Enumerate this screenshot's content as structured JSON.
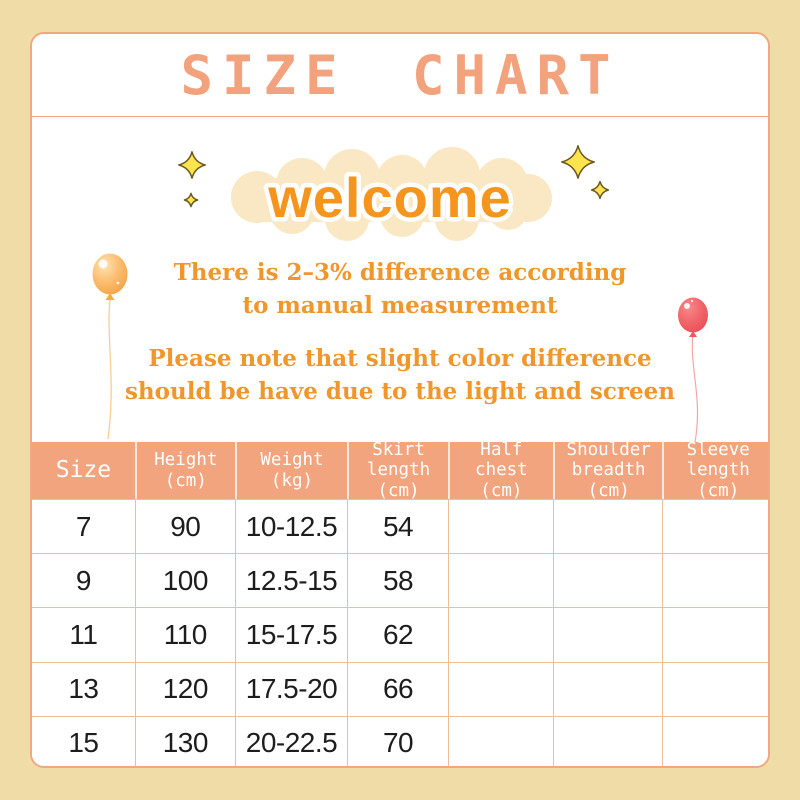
{
  "title": "SIZE CHART",
  "welcome": {
    "label": "welcome"
  },
  "notes": {
    "note1_line1": "There is 2–3% difference according",
    "note1_line2": "to manual measurement",
    "note2_line1": "Please note that slight color difference",
    "note2_line2": "should be have due to the light and screen"
  },
  "decorations": {
    "balloon_left": "orange-balloon-with-string",
    "balloon_right": "red-balloon-with-string",
    "sparkles": "yellow-four-point-stars"
  },
  "colors": {
    "background": "#F0DCA6",
    "card_border": "#EFA87F",
    "title_text": "#F2A37E",
    "header_bg": "#F1A47D",
    "header_text": "#FFFFFF",
    "note_text": "#F0962B",
    "welcome_text": "#F6951D",
    "welcome_cloud": "#FAE7C4",
    "table_border": "#EFBE96",
    "cell_text": "#1D1D1D",
    "balloon_left_color": "#FBBC6E",
    "balloon_right_color": "#F15F62",
    "sparkle_fill": "#FFE44D"
  },
  "table": {
    "columns": [
      {
        "lines": [
          "Size"
        ]
      },
      {
        "lines": [
          "Height",
          "(cm)"
        ]
      },
      {
        "lines": [
          "Weight",
          "(kg)"
        ]
      },
      {
        "lines": [
          "Skirt",
          "length",
          "(cm)"
        ]
      },
      {
        "lines": [
          "Half",
          "chest",
          "(cm)"
        ]
      },
      {
        "lines": [
          "Shoulder",
          "breadth",
          "(cm)"
        ]
      },
      {
        "lines": [
          "Sleeve",
          "length",
          "(cm)"
        ]
      }
    ],
    "rows": [
      [
        "7",
        "90",
        "10-12.5",
        "54",
        "",
        "",
        ""
      ],
      [
        "9",
        "100",
        "12.5-15",
        "58",
        "",
        "",
        ""
      ],
      [
        "11",
        "110",
        "15-17.5",
        "62",
        "",
        "",
        ""
      ],
      [
        "13",
        "120",
        "17.5-20",
        "66",
        "",
        "",
        ""
      ],
      [
        "15",
        "130",
        "20-22.5",
        "70",
        "",
        "",
        ""
      ]
    ]
  },
  "chart_data": {
    "type": "table",
    "title": "SIZE CHART",
    "columns": [
      "Size",
      "Height (cm)",
      "Weight (kg)",
      "Skirt length (cm)",
      "Half chest (cm)",
      "Shoulder breadth (cm)",
      "Sleeve length (cm)"
    ],
    "rows": [
      [
        "7",
        "90",
        "10-12.5",
        "54",
        "",
        "",
        ""
      ],
      [
        "9",
        "100",
        "12.5-15",
        "58",
        "",
        "",
        ""
      ],
      [
        "11",
        "110",
        "15-17.5",
        "62",
        "",
        "",
        ""
      ],
      [
        "13",
        "120",
        "17.5-20",
        "66",
        "",
        "",
        ""
      ],
      [
        "15",
        "130",
        "20-22.5",
        "70",
        "",
        "",
        ""
      ]
    ]
  }
}
